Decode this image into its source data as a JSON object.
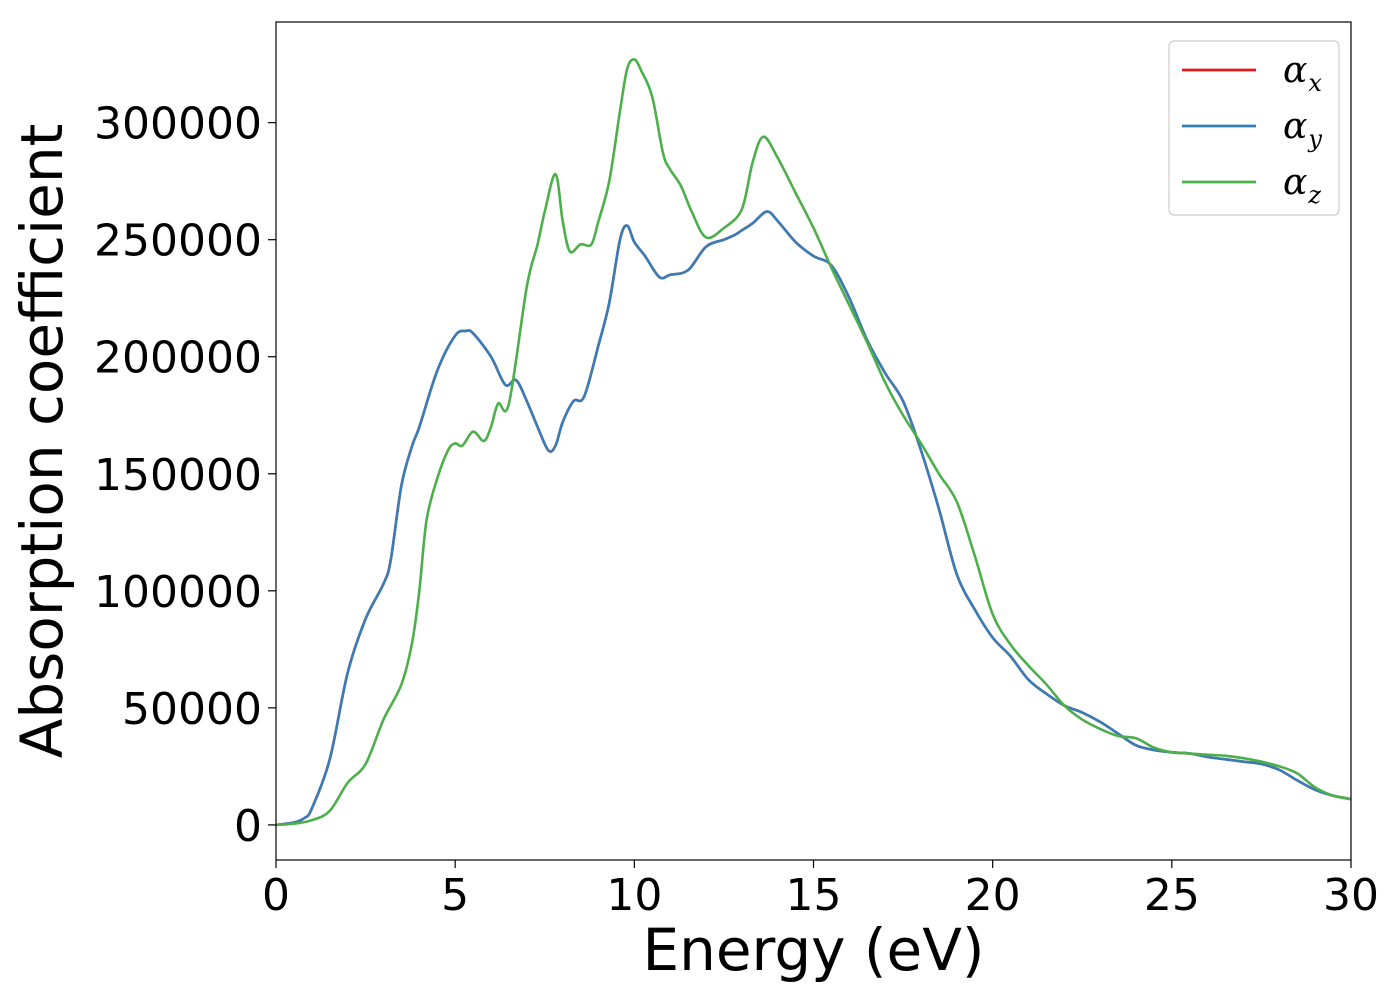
{
  "chart_data": {
    "type": "line",
    "xlabel": "Energy (eV)",
    "ylabel": "Absorption coefficient",
    "xlim": [
      0,
      30
    ],
    "ylim": [
      -15000,
      343000
    ],
    "xticks": [
      0,
      5,
      10,
      15,
      20,
      25,
      30
    ],
    "xtick_labels": [
      "0",
      "5",
      "10",
      "15",
      "20",
      "25",
      "30"
    ],
    "yticks": [
      0,
      50000,
      100000,
      150000,
      200000,
      250000,
      300000
    ],
    "ytick_labels": [
      "0",
      "50000",
      "100000",
      "150000",
      "200000",
      "250000",
      "300000"
    ],
    "grid": false,
    "legend_position": "top-right",
    "series": [
      {
        "name": "αx",
        "legend_symbol": "α",
        "legend_subscript": "x",
        "color": "#e41a1c",
        "x": [
          0,
          0.5,
          0.8,
          1.0,
          1.5,
          2.0,
          2.5,
          3.0,
          3.2,
          3.5,
          3.8,
          4.0,
          4.5,
          5.0,
          5.3,
          5.5,
          6.0,
          6.4,
          6.7,
          7.0,
          7.3,
          7.6,
          7.8,
          8.0,
          8.3,
          8.6,
          9.0,
          9.3,
          9.6,
          9.8,
          10.0,
          10.3,
          10.7,
          11.0,
          11.5,
          12.0,
          12.5,
          12.8,
          13.0,
          13.3,
          13.7,
          14.0,
          14.5,
          15.0,
          15.5,
          16.0,
          16.5,
          17.0,
          17.5,
          18.0,
          18.5,
          19.0,
          19.5,
          20.0,
          20.5,
          21.0,
          21.5,
          22.0,
          22.5,
          23.0,
          23.5,
          24.0,
          24.5,
          25.0,
          25.5,
          26.0,
          26.5,
          27.0,
          27.5,
          28.0,
          28.5,
          29.0,
          29.5,
          30.0
        ],
        "y": [
          0,
          1000,
          3000,
          7000,
          28000,
          65000,
          88000,
          103000,
          113000,
          145000,
          162000,
          170000,
          194000,
          209000,
          211000,
          210000,
          200000,
          188000,
          190000,
          181000,
          170000,
          160000,
          162000,
          172000,
          181000,
          183000,
          205000,
          223000,
          250000,
          256000,
          249000,
          243000,
          234000,
          235000,
          237000,
          247000,
          250000,
          252000,
          254000,
          257000,
          262000,
          258000,
          249000,
          243000,
          239000,
          225000,
          207000,
          193000,
          181000,
          160000,
          135000,
          107000,
          92000,
          80000,
          72000,
          62000,
          56000,
          51000,
          48000,
          44000,
          39000,
          34000,
          32000,
          31000,
          30500,
          29000,
          28000,
          27000,
          26000,
          23500,
          19000,
          15000,
          12500,
          11000
        ]
      },
      {
        "name": "αy",
        "legend_symbol": "α",
        "legend_subscript": "y",
        "color": "#377eb8",
        "x": [
          0,
          0.5,
          0.8,
          1.0,
          1.5,
          2.0,
          2.5,
          3.0,
          3.2,
          3.5,
          3.8,
          4.0,
          4.5,
          5.0,
          5.3,
          5.5,
          6.0,
          6.4,
          6.7,
          7.0,
          7.3,
          7.6,
          7.8,
          8.0,
          8.3,
          8.6,
          9.0,
          9.3,
          9.6,
          9.8,
          10.0,
          10.3,
          10.7,
          11.0,
          11.5,
          12.0,
          12.5,
          12.8,
          13.0,
          13.3,
          13.7,
          14.0,
          14.5,
          15.0,
          15.5,
          16.0,
          16.5,
          17.0,
          17.5,
          18.0,
          18.5,
          19.0,
          19.5,
          20.0,
          20.5,
          21.0,
          21.5,
          22.0,
          22.5,
          23.0,
          23.5,
          24.0,
          24.5,
          25.0,
          25.5,
          26.0,
          26.5,
          27.0,
          27.5,
          28.0,
          28.5,
          29.0,
          29.5,
          30.0
        ],
        "y": [
          0,
          1000,
          3000,
          7000,
          28000,
          65000,
          88000,
          103000,
          113000,
          145000,
          162000,
          170000,
          194000,
          209000,
          211000,
          210000,
          200000,
          188000,
          190000,
          181000,
          170000,
          160000,
          162000,
          172000,
          181000,
          183000,
          205000,
          223000,
          250000,
          256000,
          249000,
          243000,
          234000,
          235000,
          237000,
          247000,
          250000,
          252000,
          254000,
          257000,
          262000,
          258000,
          249000,
          243000,
          239000,
          225000,
          207000,
          193000,
          181000,
          160000,
          135000,
          107000,
          92000,
          80000,
          72000,
          62000,
          56000,
          51000,
          48000,
          44000,
          39000,
          34000,
          32000,
          31000,
          30500,
          29000,
          28000,
          27000,
          26000,
          23500,
          19000,
          15000,
          12500,
          11000
        ]
      },
      {
        "name": "αz",
        "legend_symbol": "α",
        "legend_subscript": "z",
        "color": "#4daf4a",
        "x": [
          0,
          0.5,
          1.0,
          1.5,
          2.0,
          2.5,
          3.0,
          3.5,
          3.8,
          4.0,
          4.2,
          4.5,
          4.8,
          5.0,
          5.2,
          5.5,
          5.8,
          6.0,
          6.2,
          6.5,
          7.0,
          7.3,
          7.5,
          7.8,
          8.0,
          8.2,
          8.5,
          8.8,
          9.0,
          9.3,
          9.6,
          9.8,
          10.0,
          10.2,
          10.5,
          10.8,
          11.0,
          11.3,
          11.6,
          12.0,
          12.5,
          13.0,
          13.3,
          13.6,
          14.0,
          14.5,
          15.0,
          15.5,
          16.0,
          16.5,
          17.0,
          17.5,
          18.0,
          18.5,
          19.0,
          19.5,
          20.0,
          20.5,
          21.0,
          21.5,
          22.0,
          22.5,
          23.0,
          23.5,
          24.0,
          24.5,
          25.0,
          25.5,
          26.0,
          26.5,
          27.0,
          27.5,
          28.0,
          28.5,
          29.0,
          29.5,
          30.0
        ],
        "y": [
          0,
          500,
          2000,
          6000,
          18000,
          26000,
          45000,
          60000,
          78000,
          100000,
          130000,
          148000,
          160000,
          163000,
          162000,
          168000,
          164000,
          170000,
          180000,
          180000,
          230000,
          248000,
          262000,
          278000,
          258000,
          245000,
          248000,
          248000,
          258000,
          275000,
          305000,
          323000,
          327000,
          322000,
          311000,
          287000,
          280000,
          273000,
          262000,
          251000,
          255000,
          263000,
          283000,
          294000,
          285000,
          270000,
          255000,
          238000,
          222000,
          206000,
          189000,
          175000,
          163000,
          150000,
          138000,
          115000,
          90000,
          77000,
          68000,
          60000,
          51000,
          45000,
          41000,
          38000,
          37000,
          33000,
          31000,
          30500,
          30000,
          29500,
          28500,
          27000,
          25000,
          22000,
          16000,
          12500,
          11000
        ]
      }
    ]
  }
}
